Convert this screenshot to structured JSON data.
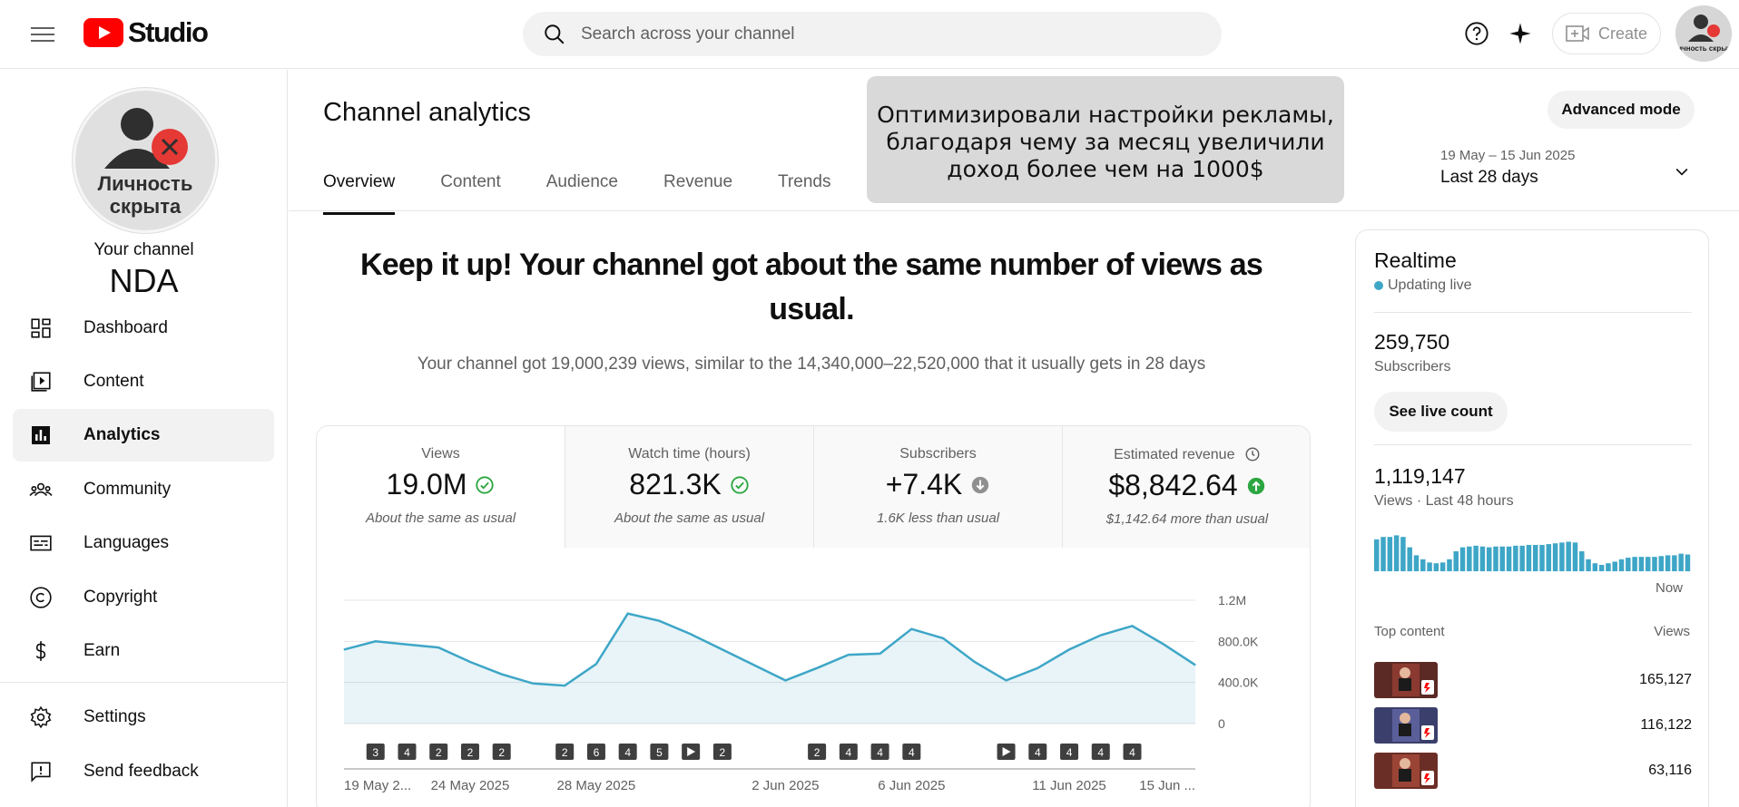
{
  "topbar": {
    "logo_text": "Studio",
    "search_placeholder": "Search across your channel",
    "create_label": "Create",
    "avatar_text": "Личность скрыта"
  },
  "sidebar": {
    "avatar_text_line1": "Личность",
    "avatar_text_line2": "скрыта",
    "your_channel": "Your channel",
    "channel_name": "NDA",
    "items": [
      {
        "label": "Dashboard",
        "icon": "dashboard-icon"
      },
      {
        "label": "Content",
        "icon": "content-icon"
      },
      {
        "label": "Analytics",
        "icon": "analytics-icon",
        "active": true
      },
      {
        "label": "Community",
        "icon": "community-icon"
      },
      {
        "label": "Languages",
        "icon": "languages-icon"
      },
      {
        "label": "Copyright",
        "icon": "copyright-icon"
      },
      {
        "label": "Earn",
        "icon": "dollar-icon"
      },
      {
        "label": "Settings",
        "icon": "gear-icon"
      },
      {
        "label": "Send feedback",
        "icon": "feedback-icon"
      }
    ]
  },
  "main": {
    "title": "Channel analytics",
    "tabs": [
      "Overview",
      "Content",
      "Audience",
      "Revenue",
      "Trends"
    ],
    "active_tab": "Overview",
    "overlay_note": "Оптимизировали настройки рекламы, благодаря чему за месяц увеличили доход более чем на 1000$",
    "advanced_mode": "Advanced mode",
    "date_range_small": "19 May – 15 Jun 2025",
    "date_range_big": "Last 28 days",
    "headline": "Keep it up! Your channel got about the same number of views as usual.",
    "subline": "Your channel got 19,000,239 views, similar to the 14,340,000–22,520,000 that it usually gets in 28 days",
    "metrics": [
      {
        "label": "Views",
        "value": "19.0M",
        "note": "About the same as usual",
        "status": "check"
      },
      {
        "label": "Watch time (hours)",
        "value": "821.3K",
        "note": "About the same as usual",
        "status": "check"
      },
      {
        "label": "Subscribers",
        "value": "+7.4K",
        "note": "1.6K less than usual",
        "status": "down"
      },
      {
        "label": "Estimated revenue",
        "value": "$8,842.64",
        "note": "$1,142.64 more than usual",
        "status": "up"
      }
    ]
  },
  "chart_data": {
    "type": "area",
    "series": [
      {
        "values": [
          720000,
          800000,
          770000,
          740000,
          600000,
          480000,
          390000,
          370000,
          580000,
          1070000,
          1000000,
          870000,
          720000,
          570000,
          420000,
          540000,
          670000,
          680000,
          920000,
          830000,
          600000,
          420000,
          540000,
          720000,
          860000,
          950000,
          770000,
          570000
        ]
      }
    ],
    "ylim": [
      0,
      1200000
    ],
    "y_ticks": [
      "1.2M",
      "800.0K",
      "400.0K",
      "0"
    ],
    "x_labels": [
      "19 May 2...",
      "24 May 2025",
      "28 May 2025",
      "2 Jun 2025",
      "6 Jun 2025",
      "11 Jun 2025",
      "15 Jun ..."
    ],
    "x_label_days": [
      0,
      4,
      8,
      14,
      18,
      23,
      27
    ],
    "markers": [
      {
        "day": 1,
        "label": "3"
      },
      {
        "day": 2,
        "label": "4"
      },
      {
        "day": 3,
        "label": "2"
      },
      {
        "day": 4,
        "label": "2"
      },
      {
        "day": 5,
        "label": "2"
      },
      {
        "day": 7,
        "label": "2"
      },
      {
        "day": 8,
        "label": "6"
      },
      {
        "day": 9,
        "label": "4"
      },
      {
        "day": 10,
        "label": "5"
      },
      {
        "day": 11,
        "label": "play"
      },
      {
        "day": 12,
        "label": "2"
      },
      {
        "day": 15,
        "label": "2"
      },
      {
        "day": 16,
        "label": "4"
      },
      {
        "day": 17,
        "label": "4"
      },
      {
        "day": 18,
        "label": "4"
      },
      {
        "day": 21,
        "label": "play"
      },
      {
        "day": 22,
        "label": "4"
      },
      {
        "day": 23,
        "label": "4"
      },
      {
        "day": 24,
        "label": "4"
      },
      {
        "day": 25,
        "label": "4"
      }
    ],
    "color": "#3ea6c7"
  },
  "realtime": {
    "title": "Realtime",
    "live": "Updating live",
    "subscribers_value": "259,750",
    "subscribers_label": "Subscribers",
    "see_live_count": "See live count",
    "views_value": "1,119,147",
    "views_label": "Views · Last 48 hours",
    "now_label": "Now",
    "bars": [
      0.8,
      0.86,
      0.86,
      0.9,
      0.86,
      0.6,
      0.4,
      0.3,
      0.22,
      0.2,
      0.22,
      0.3,
      0.5,
      0.6,
      0.62,
      0.64,
      0.62,
      0.6,
      0.62,
      0.62,
      0.62,
      0.64,
      0.64,
      0.66,
      0.66,
      0.66,
      0.68,
      0.7,
      0.72,
      0.74,
      0.72,
      0.5,
      0.3,
      0.2,
      0.16,
      0.2,
      0.24,
      0.3,
      0.34,
      0.36,
      0.36,
      0.36,
      0.36,
      0.38,
      0.4,
      0.4,
      0.44,
      0.42
    ],
    "top_content_label": "Top content",
    "views_col_label": "Views",
    "top_content": [
      {
        "views": "165,127"
      },
      {
        "views": "116,122"
      },
      {
        "views": "63,116"
      }
    ]
  }
}
